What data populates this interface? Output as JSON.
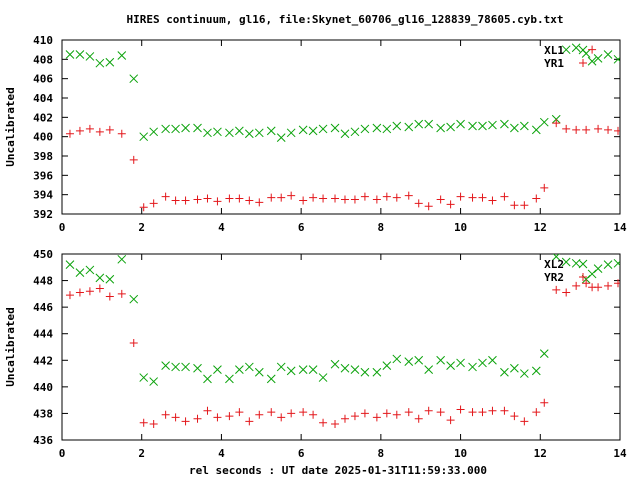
{
  "title": "HIRES continuum, gl16, file:Skynet_60706_gl16_128839_78605.cyb.txt",
  "xlabel": "rel seconds : UT date 2025-01-31T11:59:33.000",
  "colors": {
    "red": "#e3171b",
    "green": "#0aa20a",
    "axis": "#000000"
  },
  "chart_data": [
    {
      "type": "scatter",
      "ylabel": "Uncalibrated",
      "xlim": [
        0,
        14
      ],
      "ylim": [
        392,
        410
      ],
      "xticks": [
        0,
        2,
        4,
        6,
        8,
        10,
        12,
        14
      ],
      "yticks": [
        392,
        394,
        396,
        398,
        400,
        402,
        404,
        406,
        408,
        410
      ],
      "legend_position": "top-right",
      "series": [
        {
          "name": "XL1",
          "marker": "x",
          "color": "#0aa20a",
          "x": [
            0.2,
            0.45,
            0.7,
            0.95,
            1.2,
            1.5,
            1.8,
            2.05,
            2.3,
            2.6,
            2.85,
            3.1,
            3.4,
            3.65,
            3.9,
            4.2,
            4.45,
            4.7,
            4.95,
            5.25,
            5.5,
            5.75,
            6.05,
            6.3,
            6.55,
            6.85,
            7.1,
            7.35,
            7.6,
            7.9,
            8.15,
            8.4,
            8.7,
            8.95,
            9.2,
            9.5,
            9.75,
            10.0,
            10.3,
            10.55,
            10.8,
            11.1,
            11.35,
            11.6,
            11.9,
            12.1,
            12.4,
            12.65,
            12.9,
            13.15,
            13.3,
            13.45,
            13.7,
            13.95
          ],
          "y": [
            408.5,
            408.5,
            408.3,
            407.6,
            407.7,
            408.4,
            406.0,
            400.0,
            400.5,
            400.8,
            400.8,
            400.9,
            400.9,
            400.4,
            400.5,
            400.4,
            400.6,
            400.3,
            400.4,
            400.6,
            399.9,
            400.4,
            400.7,
            400.6,
            400.8,
            400.9,
            400.3,
            400.5,
            400.8,
            400.9,
            400.8,
            401.1,
            401.0,
            401.3,
            401.3,
            400.9,
            401.0,
            401.3,
            401.1,
            401.1,
            401.2,
            401.3,
            400.9,
            401.1,
            400.7,
            401.5,
            401.8,
            409.0,
            409.2,
            408.6,
            407.8,
            408.1,
            408.5,
            408.0
          ]
        },
        {
          "name": "YR1",
          "marker": "+",
          "color": "#e3171b",
          "x": [
            0.2,
            0.45,
            0.7,
            0.95,
            1.2,
            1.5,
            1.8,
            2.05,
            2.3,
            2.6,
            2.85,
            3.1,
            3.4,
            3.65,
            3.9,
            4.2,
            4.45,
            4.7,
            4.95,
            5.25,
            5.5,
            5.75,
            6.05,
            6.3,
            6.55,
            6.85,
            7.1,
            7.35,
            7.6,
            7.9,
            8.15,
            8.4,
            8.7,
            8.95,
            9.2,
            9.5,
            9.75,
            10.0,
            10.3,
            10.55,
            10.8,
            11.1,
            11.35,
            11.6,
            11.9,
            12.1,
            12.4,
            12.65,
            12.9,
            13.15,
            13.3,
            13.45,
            13.7,
            13.95
          ],
          "y": [
            400.3,
            400.6,
            400.8,
            400.5,
            400.7,
            400.3,
            397.6,
            392.7,
            393.1,
            393.8,
            393.4,
            393.4,
            393.5,
            393.6,
            393.3,
            393.6,
            393.6,
            393.4,
            393.2,
            393.7,
            393.7,
            393.9,
            393.4,
            393.7,
            393.6,
            393.6,
            393.5,
            393.5,
            393.8,
            393.5,
            393.8,
            393.7,
            393.9,
            393.1,
            392.8,
            393.5,
            393.0,
            393.8,
            393.7,
            393.7,
            393.4,
            393.8,
            392.9,
            392.9,
            393.6,
            394.7,
            401.4,
            400.8,
            400.7,
            400.7,
            409.0,
            400.8,
            400.7,
            400.6
          ]
        }
      ]
    },
    {
      "type": "scatter",
      "ylabel": "Uncalibrated",
      "xlim": [
        0,
        14
      ],
      "ylim": [
        436,
        450
      ],
      "xticks": [
        0,
        2,
        4,
        6,
        8,
        10,
        12,
        14
      ],
      "yticks": [
        436,
        438,
        440,
        442,
        444,
        446,
        448,
        450
      ],
      "legend_position": "top-right",
      "series": [
        {
          "name": "XL2",
          "marker": "x",
          "color": "#0aa20a",
          "x": [
            0.2,
            0.45,
            0.7,
            0.95,
            1.2,
            1.5,
            1.8,
            2.05,
            2.3,
            2.6,
            2.85,
            3.1,
            3.4,
            3.65,
            3.9,
            4.2,
            4.45,
            4.7,
            4.95,
            5.25,
            5.5,
            5.75,
            6.05,
            6.3,
            6.55,
            6.85,
            7.1,
            7.35,
            7.6,
            7.9,
            8.15,
            8.4,
            8.7,
            8.95,
            9.2,
            9.5,
            9.75,
            10.0,
            10.3,
            10.55,
            10.8,
            11.1,
            11.35,
            11.6,
            11.9,
            12.1,
            12.4,
            12.65,
            12.9,
            13.15,
            13.3,
            13.45,
            13.7,
            13.95
          ],
          "y": [
            449.2,
            448.6,
            448.8,
            448.2,
            448.1,
            449.6,
            446.6,
            440.7,
            440.4,
            441.6,
            441.5,
            441.5,
            441.4,
            440.6,
            441.3,
            440.6,
            441.3,
            441.5,
            441.1,
            440.6,
            441.5,
            441.2,
            441.3,
            441.3,
            440.7,
            441.7,
            441.4,
            441.3,
            441.1,
            441.1,
            441.6,
            442.1,
            441.9,
            442.0,
            441.3,
            442.0,
            441.6,
            441.8,
            441.5,
            441.8,
            442.0,
            441.1,
            441.4,
            441.0,
            441.2,
            442.5,
            449.8,
            449.4,
            449.3,
            448.1,
            448.5,
            448.9,
            449.2,
            449.3
          ]
        },
        {
          "name": "YR2",
          "marker": "+",
          "color": "#e3171b",
          "x": [
            0.2,
            0.45,
            0.7,
            0.95,
            1.2,
            1.5,
            1.8,
            2.05,
            2.3,
            2.6,
            2.85,
            3.1,
            3.4,
            3.65,
            3.9,
            4.2,
            4.45,
            4.7,
            4.95,
            5.25,
            5.5,
            5.75,
            6.05,
            6.3,
            6.55,
            6.85,
            7.1,
            7.35,
            7.6,
            7.9,
            8.15,
            8.4,
            8.7,
            8.95,
            9.2,
            9.5,
            9.75,
            10.0,
            10.3,
            10.55,
            10.8,
            11.1,
            11.35,
            11.6,
            11.9,
            12.1,
            12.4,
            12.65,
            12.9,
            13.15,
            13.3,
            13.45,
            13.7,
            13.95
          ],
          "y": [
            446.9,
            447.1,
            447.2,
            447.4,
            446.8,
            447.0,
            443.3,
            437.3,
            437.2,
            437.9,
            437.7,
            437.4,
            437.6,
            438.2,
            437.7,
            437.8,
            438.1,
            437.4,
            437.9,
            438.1,
            437.7,
            438.0,
            438.1,
            437.9,
            437.3,
            437.2,
            437.6,
            437.8,
            438.0,
            437.7,
            438.0,
            437.9,
            438.1,
            437.6,
            438.2,
            438.1,
            437.5,
            438.3,
            438.1,
            438.1,
            438.2,
            438.2,
            437.8,
            437.4,
            438.1,
            438.8,
            447.3,
            447.1,
            447.6,
            447.8,
            447.5,
            447.5,
            447.6,
            447.8
          ]
        }
      ]
    }
  ]
}
